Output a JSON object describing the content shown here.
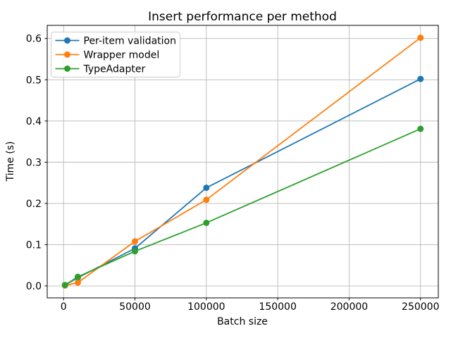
{
  "chart_data": {
    "type": "line",
    "title": "Insert performance per method",
    "xlabel": "Batch size",
    "ylabel": "Time (s)",
    "x": [
      1000,
      10000,
      50000,
      100000,
      250000
    ],
    "series": [
      {
        "name": "Per-item validation",
        "color": "#1f77b4",
        "values": [
          0.002,
          0.02,
          0.091,
          0.238,
          0.502
        ]
      },
      {
        "name": "Wrapper model",
        "color": "#ff7f0e",
        "values": [
          0.001,
          0.008,
          0.108,
          0.209,
          0.602
        ]
      },
      {
        "name": "TypeAdapter",
        "color": "#2ca02c",
        "values": [
          0.002,
          0.022,
          0.084,
          0.153,
          0.381
        ]
      }
    ],
    "xlim": [
      -11450,
      262450
    ],
    "ylim": [
      -0.029,
      0.632
    ],
    "xticks": {
      "values": [
        0,
        50000,
        100000,
        150000,
        200000,
        250000
      ],
      "labels": [
        "0",
        "50000",
        "100000",
        "150000",
        "200000",
        "250000"
      ]
    },
    "yticks": {
      "values": [
        0.0,
        0.1,
        0.2,
        0.3,
        0.4,
        0.5,
        0.6
      ],
      "labels": [
        "0.0",
        "0.1",
        "0.2",
        "0.3",
        "0.4",
        "0.5",
        "0.6"
      ]
    },
    "grid": true,
    "legend": {
      "position": "upper-left"
    },
    "colors": {
      "grid": "#b8b8b8",
      "spine": "#000000",
      "background": "#ffffff",
      "legend_border": "#cccccc",
      "legend_background": "#ffffff"
    }
  }
}
